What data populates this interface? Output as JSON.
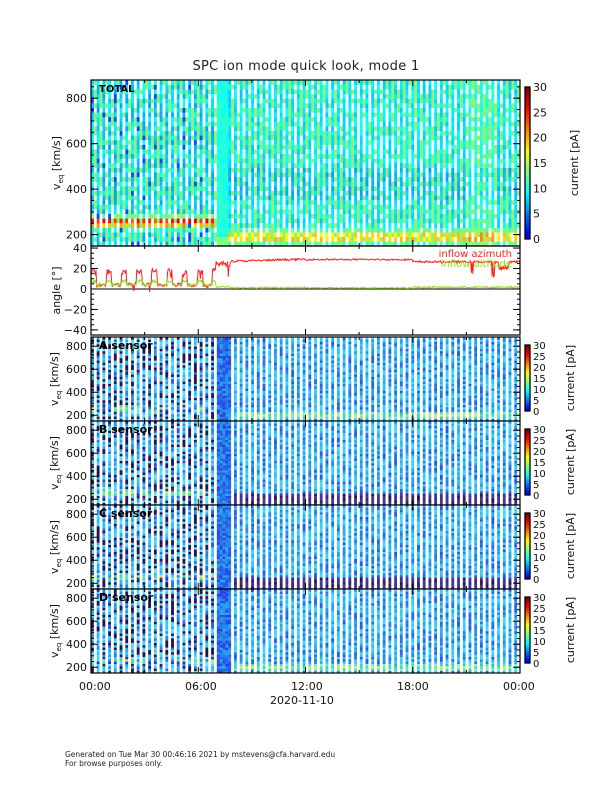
{
  "title": "SPC ion mode quick look, mode 1",
  "footer": {
    "line1": "Generated on Tue Mar 30 00:46:16 2021 by mstevens@cfa.harvard.edu",
    "line2": "For browse purposes only."
  },
  "chart_data": [
    {
      "type": "heatmap",
      "panel": "TOTAL",
      "label": "TOTAL",
      "ylabel": "v_eq [km/s]",
      "ylim": [
        150,
        880
      ],
      "yticks": [
        200,
        400,
        600,
        800
      ],
      "colorbar": {
        "label": "current [pA]",
        "range": [
          0,
          30
        ],
        "ticks": [
          0,
          5,
          10,
          15,
          20,
          25,
          30
        ]
      },
      "description": "Peak current band near 250 km/s (red, ~25 pA) before 07:00; after ~07:00 peak near 180-200 km/s (yellow/orange ~12-18 pA); strong green column ~07:00-07:45"
    },
    {
      "type": "line",
      "panel": "angles",
      "ylabel": "angle [°]",
      "ylim": [
        -45,
        42
      ],
      "yticks": [
        -40,
        -20,
        0,
        20,
        40
      ],
      "series": [
        {
          "name": "inflow azimuth",
          "color": "#ff0000",
          "description": "~5-20° oscillating before 07:00, rising to ~25° at 07:30, ~28° 12:00-18:00, ~25° late day with dips near 22:00"
        },
        {
          "name": "inflow altitude",
          "color": "#80e000",
          "description": "~5° early, ~0-2° after 07:00"
        }
      ]
    },
    {
      "type": "heatmap",
      "panel": "A sensor",
      "label": "A sensor",
      "ylabel": "v_eq [km/s]",
      "ylim": [
        150,
        880
      ],
      "yticks": [
        200,
        400,
        600,
        800
      ],
      "colorbar": {
        "label": "current [pA]",
        "range": [
          0,
          30
        ],
        "ticks": [
          0,
          5,
          10,
          15,
          20,
          25,
          30
        ]
      }
    },
    {
      "type": "heatmap",
      "panel": "B sensor",
      "label": "B sensor",
      "ylabel": "v_eq [km/s]",
      "ylim": [
        150,
        880
      ],
      "yticks": [
        200,
        400,
        600,
        800
      ],
      "colorbar": {
        "label": "current [pA]",
        "range": [
          0,
          30
        ],
        "ticks": [
          0,
          5,
          10,
          15,
          20,
          25,
          30
        ]
      }
    },
    {
      "type": "heatmap",
      "panel": "C sensor",
      "label": "C sensor",
      "ylabel": "v_eq [km/s]",
      "ylim": [
        150,
        880
      ],
      "yticks": [
        200,
        400,
        600,
        800
      ],
      "colorbar": {
        "label": "current [pA]",
        "range": [
          0,
          30
        ],
        "ticks": [
          0,
          5,
          10,
          15,
          20,
          25,
          30
        ]
      }
    },
    {
      "type": "heatmap",
      "panel": "D sensor",
      "label": "D sensor",
      "ylabel": "v_eq [km/s]",
      "ylim": [
        150,
        880
      ],
      "yticks": [
        200,
        400,
        600,
        800
      ],
      "colorbar": {
        "label": "current [pA]",
        "range": [
          0,
          30
        ],
        "ticks": [
          0,
          5,
          10,
          15,
          20,
          25,
          30
        ]
      }
    }
  ],
  "xaxis": {
    "ticks": [
      "00:00",
      "06:00",
      "12:00",
      "18:00",
      "00:00"
    ],
    "tick_hours": [
      0,
      6,
      12,
      18,
      24
    ],
    "date_label": "2020-11-10",
    "range_hours": [
      0,
      24
    ]
  },
  "labels": {
    "ylabel_veq_main": "v",
    "ylabel_veq_sub": "eq",
    "ylabel_veq_unit": "[km/s]",
    "ylabel_angle": "angle [°]",
    "colorbar_label": "current [pA]",
    "total": "TOTAL",
    "a": "A sensor",
    "b": "B sensor",
    "c": "C sensor",
    "d": "D sensor",
    "azimuth": "inflow azimuth",
    "altitude": "inflow altitude"
  },
  "colors": {
    "azimuth": "#ff2020",
    "altitude": "#90e020"
  }
}
